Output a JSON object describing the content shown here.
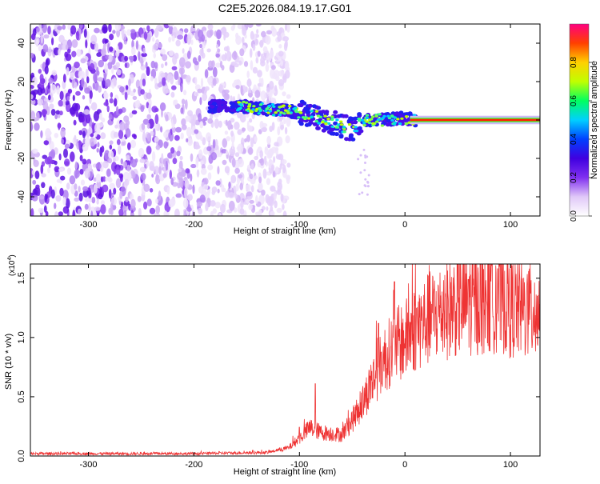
{
  "title": "C2E5.2026.084.19.17.G01",
  "chart_data": [
    {
      "type": "heatmap",
      "xlabel": "Height of straight line (km)",
      "ylabel": "Frequency (Hz)",
      "xlim": [
        -355,
        128
      ],
      "ylim": [
        -50,
        50
      ],
      "xticks": [
        -300,
        -200,
        -100,
        0,
        100
      ],
      "yticks": [
        -40,
        -20,
        0,
        20,
        40
      ],
      "grid": false,
      "colorbar": {
        "label": "Normalized spectral amplitude",
        "range": [
          0,
          1
        ],
        "ticks": [
          "0.0",
          "0.2",
          "0.4",
          "0.6",
          "0.8"
        ],
        "ticks_values": [
          0.0,
          0.2,
          0.4,
          0.6,
          0.8
        ],
        "colormap": [
          "#ffffff",
          "#e0c8f8",
          "#8030f0",
          "#4000e0",
          "#0040ff",
          "#00d0ff",
          "#00ff60",
          "#c0ff00",
          "#ffd000",
          "#ff4000",
          "#ff0080"
        ]
      },
      "features": {
        "noise_region_x": [
          -355,
          -140
        ],
        "signal_trace": [
          {
            "x": -180,
            "y": 7
          },
          {
            "x": -150,
            "y": 7
          },
          {
            "x": -120,
            "y": 5
          },
          {
            "x": -100,
            "y": 4
          },
          {
            "x": -80,
            "y": 1
          },
          {
            "x": -60,
            "y": -3
          },
          {
            "x": -50,
            "y": -5
          },
          {
            "x": -40,
            "y": 0
          },
          {
            "x": -20,
            "y": 0
          },
          {
            "x": 0,
            "y": 1
          },
          {
            "x": 10,
            "y": 0
          },
          {
            "x": 128,
            "y": 0
          }
        ],
        "steady_tone_x": [
          5,
          128
        ]
      }
    },
    {
      "type": "line",
      "xlabel": "Height of straight line (km)",
      "ylabel": "SNR (10 * v/v)",
      "y_multiplier": "(x10",
      "y_multiplier_exp": "4",
      "y_multiplier_close": ")",
      "xlim": [
        -355,
        128
      ],
      "ylim": [
        0,
        1.62
      ],
      "xticks": [
        -300,
        -200,
        -100,
        0,
        100
      ],
      "yticks": [
        "0.0",
        "0.5",
        "1.0",
        "1.5"
      ],
      "yticks_values": [
        0.0,
        0.5,
        1.0,
        1.5
      ],
      "grid": false,
      "color": "#ee3333",
      "series": [
        {
          "envelope": [
            {
              "x": -355,
              "y": 0.02
            },
            {
              "x": -200,
              "y": 0.02
            },
            {
              "x": -130,
              "y": 0.03
            },
            {
              "x": -110,
              "y": 0.07
            },
            {
              "x": -100,
              "y": 0.15
            },
            {
              "x": -90,
              "y": 0.24
            },
            {
              "x": -80,
              "y": 0.2
            },
            {
              "x": -60,
              "y": 0.18
            },
            {
              "x": -50,
              "y": 0.3
            },
            {
              "x": -40,
              "y": 0.45
            },
            {
              "x": -30,
              "y": 0.65
            },
            {
              "x": -20,
              "y": 0.82
            },
            {
              "x": -10,
              "y": 0.92
            },
            {
              "x": 0,
              "y": 0.98
            },
            {
              "x": 10,
              "y": 1.08
            },
            {
              "x": 30,
              "y": 1.2
            },
            {
              "x": 50,
              "y": 1.28
            },
            {
              "x": 80,
              "y": 1.3
            },
            {
              "x": 90,
              "y": 1.33
            },
            {
              "x": 100,
              "y": 1.26
            },
            {
              "x": 128,
              "y": 1.2
            }
          ],
          "spikes": [
            {
              "x": -85,
              "y": 0.61
            },
            {
              "x": -25,
              "y": 1.12
            },
            {
              "x": -10,
              "y": 1.47
            },
            {
              "x": 60,
              "y": 1.49
            },
            {
              "x": 88,
              "y": 1.58
            }
          ]
        }
      ]
    }
  ]
}
